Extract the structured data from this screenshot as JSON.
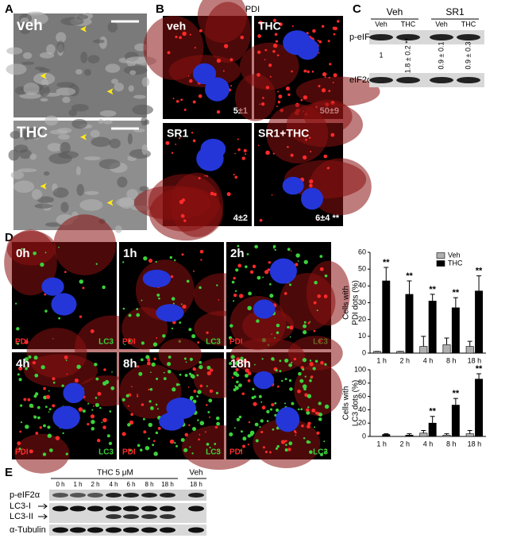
{
  "panel_a": {
    "label": "A",
    "image_labels": [
      "veh",
      "THC"
    ]
  },
  "panel_b": {
    "label": "B",
    "title": "PDI",
    "image_labels": [
      "veh",
      "THC",
      "SR1",
      "SR1+THC"
    ],
    "counts": [
      "5±1",
      "50±9",
      "4±2",
      "6±4 **"
    ]
  },
  "panel_c": {
    "label": "C",
    "groups": [
      "Veh",
      "SR1"
    ],
    "lanes": [
      "Veh",
      "THC",
      "Veh",
      "THC"
    ],
    "rows": [
      "p-eIF2α",
      "eIF2α"
    ],
    "quantification": [
      "1",
      "1.8 ± 0.2 **",
      "0.9 ± 0.1",
      "0.9 ± 0.3"
    ]
  },
  "panel_d": {
    "label": "D",
    "time_labels": [
      "0h",
      "1h",
      "2h",
      "4h",
      "8h",
      "18h"
    ],
    "stain_labels": [
      "PDI",
      "LC3"
    ]
  },
  "panel_e": {
    "label": "E",
    "treatment": "THC 5 μM",
    "control": "Veh",
    "lanes": [
      "0 h",
      "1 h",
      "2 h",
      "4 h",
      "6 h",
      "8 h",
      "18 h",
      "18 h"
    ],
    "rows": [
      "p-eIF2α",
      "LC3-I",
      "LC3-II",
      "α-Tubulin"
    ]
  },
  "chart_data": [
    {
      "type": "bar",
      "ylabel": [
        "Cells with",
        "PDI dots (%)"
      ],
      "categories": [
        "1 h",
        "2 h",
        "4 h",
        "8 h",
        "18 h"
      ],
      "series": [
        {
          "name": "Veh",
          "color": "#b0b0b0",
          "values": [
            1,
            1,
            4,
            5,
            4
          ],
          "errors": [
            0,
            0,
            6,
            4,
            3
          ]
        },
        {
          "name": "THC",
          "color": "#000000",
          "values": [
            43,
            35,
            31,
            27,
            37
          ],
          "errors": [
            8,
            8,
            4,
            6,
            9
          ]
        }
      ],
      "annotations": [
        {
          "text": "**",
          "x": "1 h"
        },
        {
          "text": "**",
          "x": "2 h"
        },
        {
          "text": "**",
          "x": "4 h"
        },
        {
          "text": "**",
          "x": "8 h"
        },
        {
          "text": "**",
          "x": "18 h"
        }
      ],
      "ylim": [
        0,
        60
      ],
      "yticks": [
        0,
        10,
        20,
        30,
        40,
        50,
        60
      ],
      "legend": "top-right"
    },
    {
      "type": "bar",
      "ylabel": [
        "Cells with",
        "LC3 dots (%)"
      ],
      "categories": [
        "1 h",
        "2 h",
        "4 h",
        "8 h",
        "18 h"
      ],
      "series": [
        {
          "name": "Veh",
          "color": "#b0b0b0",
          "values": [
            0,
            0,
            5,
            2,
            4
          ],
          "errors": [
            0,
            0,
            4,
            2,
            5
          ]
        },
        {
          "name": "THC",
          "color": "#000000",
          "values": [
            3,
            2,
            20,
            47,
            86
          ],
          "errors": [
            1,
            2,
            10,
            10,
            8
          ]
        }
      ],
      "annotations": [
        {
          "text": "**",
          "x": "4 h"
        },
        {
          "text": "**",
          "x": "8 h"
        },
        {
          "text": "**",
          "x": "18 h"
        }
      ],
      "ylim": [
        0,
        100
      ],
      "yticks": [
        0,
        20,
        40,
        60,
        80,
        100
      ]
    }
  ]
}
